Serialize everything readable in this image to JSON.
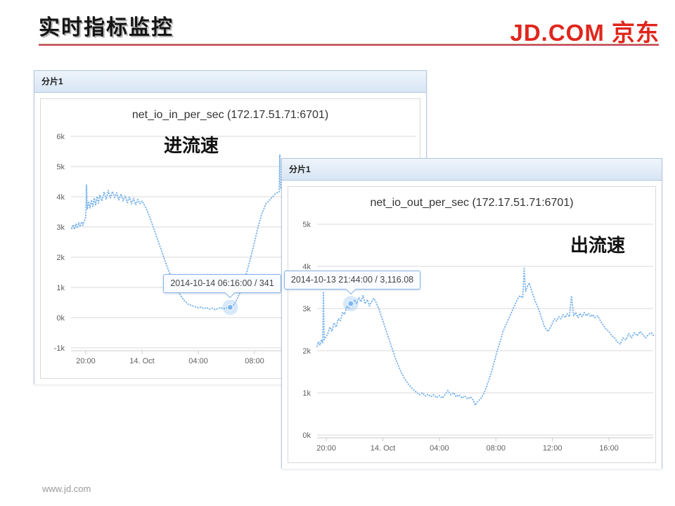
{
  "page": {
    "heading": "实时指标监控",
    "logo_text": "JD.COM 京东",
    "footer": "www.jd.com",
    "brand_red": "#E0261C",
    "underline_red": "#C53A56"
  },
  "panels": [
    {
      "header": "分片1"
    },
    {
      "header": "分片1"
    }
  ],
  "chart_data": [
    {
      "type": "line",
      "title": "net_io_in_per_sec (172.17.51.71:6701)",
      "overlay_label": "进流速",
      "xlabel": "",
      "ylabel": "",
      "grid": true,
      "legend": false,
      "line_style": "dotted",
      "x_unit": "hours since 2014-10-13 00:00",
      "x_domain": [
        18.95,
        43.45
      ],
      "y_domain": [
        -1000,
        6000
      ],
      "y_ticks": [
        {
          "v": -1000,
          "label": "-1k"
        },
        {
          "v": 0,
          "label": "0k"
        },
        {
          "v": 1000,
          "label": "1k"
        },
        {
          "v": 2000,
          "label": "2k"
        },
        {
          "v": 3000,
          "label": "3k"
        },
        {
          "v": 4000,
          "label": "4k"
        },
        {
          "v": 5000,
          "label": "5k"
        },
        {
          "v": 6000,
          "label": "6k"
        }
      ],
      "x_ticks": [
        {
          "h": 20,
          "label": "20:00"
        },
        {
          "h": 24,
          "label": "14. Oct"
        },
        {
          "h": 28,
          "label": "04:00"
        },
        {
          "h": 32,
          "label": "08:00"
        }
      ],
      "highlight": {
        "h": 30.266,
        "v": 341,
        "tooltip": "2014-10-14 06:16:00 / 341"
      },
      "series": [
        {
          "name": "net_io_in_per_sec",
          "color": "#7CB5EC",
          "points": [
            [
              19.0,
              2950
            ],
            [
              19.1,
              3080
            ],
            [
              19.2,
              2920
            ],
            [
              19.3,
              3110
            ],
            [
              19.4,
              2960
            ],
            [
              19.5,
              3150
            ],
            [
              19.6,
              3010
            ],
            [
              19.7,
              3170
            ],
            [
              19.8,
              3050
            ],
            [
              19.9,
              3210
            ],
            [
              20.0,
              3320
            ],
            [
              20.05,
              4400
            ],
            [
              20.1,
              3580
            ],
            [
              20.2,
              3850
            ],
            [
              20.3,
              3620
            ],
            [
              20.4,
              3900
            ],
            [
              20.5,
              3680
            ],
            [
              20.6,
              3960
            ],
            [
              20.7,
              3730
            ],
            [
              20.8,
              4010
            ],
            [
              20.9,
              3790
            ],
            [
              21.0,
              4060
            ],
            [
              21.15,
              3860
            ],
            [
              21.3,
              4160
            ],
            [
              21.45,
              3910
            ],
            [
              21.6,
              4210
            ],
            [
              21.75,
              3960
            ],
            [
              21.9,
              4180
            ],
            [
              22.05,
              3980
            ],
            [
              22.2,
              4130
            ],
            [
              22.35,
              3890
            ],
            [
              22.5,
              4090
            ],
            [
              22.65,
              3860
            ],
            [
              22.8,
              4030
            ],
            [
              22.95,
              3810
            ],
            [
              23.1,
              3990
            ],
            [
              23.25,
              3770
            ],
            [
              23.4,
              3950
            ],
            [
              23.55,
              3730
            ],
            [
              23.7,
              3910
            ],
            [
              23.85,
              3770
            ],
            [
              24.0,
              3860
            ],
            [
              24.3,
              3610
            ],
            [
              24.6,
              3260
            ],
            [
              24.9,
              2860
            ],
            [
              25.2,
              2460
            ],
            [
              25.5,
              2060
            ],
            [
              25.8,
              1660
            ],
            [
              26.1,
              1310
            ],
            [
              26.4,
              1010
            ],
            [
              26.7,
              760
            ],
            [
              27.0,
              570
            ],
            [
              27.3,
              440
            ],
            [
              27.6,
              390
            ],
            [
              27.8,
              355
            ],
            [
              28.0,
              325
            ],
            [
              28.2,
              352
            ],
            [
              28.4,
              300
            ],
            [
              28.6,
              332
            ],
            [
              28.8,
              282
            ],
            [
              29.0,
              312
            ],
            [
              29.2,
              262
            ],
            [
              29.4,
              300
            ],
            [
              29.6,
              332
            ],
            [
              29.8,
              292
            ],
            [
              30.0,
              322
            ],
            [
              30.266,
              341
            ],
            [
              30.5,
              400
            ],
            [
              30.7,
              560
            ],
            [
              31.0,
              860
            ],
            [
              31.3,
              1260
            ],
            [
              31.6,
              1760
            ],
            [
              31.9,
              2310
            ],
            [
              32.2,
              2910
            ],
            [
              32.5,
              3410
            ],
            [
              32.8,
              3760
            ],
            [
              33.1,
              3910
            ],
            [
              33.3,
              4010
            ],
            [
              33.5,
              4110
            ],
            [
              33.75,
              4160
            ],
            [
              33.8,
              5400
            ],
            [
              33.85,
              4300
            ],
            [
              33.95,
              4210
            ]
          ]
        }
      ]
    },
    {
      "type": "line",
      "title": "net_io_out_per_sec (172.17.51.71:6701)",
      "overlay_label": "出流速",
      "xlabel": "",
      "ylabel": "",
      "grid": true,
      "legend": false,
      "line_style": "dotted",
      "x_unit": "hours since 2014-10-13 00:00",
      "x_domain": [
        19.35,
        43.13
      ],
      "y_domain": [
        0,
        5000
      ],
      "y_ticks": [
        {
          "v": 0,
          "label": "0k"
        },
        {
          "v": 1000,
          "label": "1k"
        },
        {
          "v": 2000,
          "label": "2k"
        },
        {
          "v": 3000,
          "label": "3k"
        },
        {
          "v": 4000,
          "label": "4k"
        },
        {
          "v": 5000,
          "label": "5k"
        }
      ],
      "x_ticks": [
        {
          "h": 20,
          "label": "20:00"
        },
        {
          "h": 24,
          "label": "14. Oct"
        },
        {
          "h": 28,
          "label": "04:00"
        },
        {
          "h": 32,
          "label": "08:00"
        },
        {
          "h": 36,
          "label": "12:00"
        },
        {
          "h": 40,
          "label": "16:00"
        }
      ],
      "highlight": {
        "h": 21.733,
        "v": 3116.08,
        "tooltip": "2014-10-13 21:44:00 / 3,116.08"
      },
      "series": [
        {
          "name": "net_io_out_per_sec",
          "color": "#7CB5EC",
          "points": [
            [
              19.35,
              2100
            ],
            [
              19.45,
              2210
            ],
            [
              19.55,
              2130
            ],
            [
              19.65,
              2260
            ],
            [
              19.75,
              2180
            ],
            [
              19.8,
              3400
            ],
            [
              19.85,
              2260
            ],
            [
              19.95,
              2320
            ],
            [
              20.1,
              2400
            ],
            [
              20.25,
              2560
            ],
            [
              20.4,
              2460
            ],
            [
              20.55,
              2660
            ],
            [
              20.7,
              2560
            ],
            [
              20.85,
              2760
            ],
            [
              21.0,
              2710
            ],
            [
              21.15,
              2910
            ],
            [
              21.3,
              2860
            ],
            [
              21.45,
              3060
            ],
            [
              21.6,
              3010
            ],
            [
              21.733,
              3116
            ],
            [
              21.85,
              3060
            ],
            [
              22.0,
              3210
            ],
            [
              22.15,
              3110
            ],
            [
              22.3,
              3260
            ],
            [
              22.45,
              3160
            ],
            [
              22.6,
              3310
            ],
            [
              22.75,
              3110
            ],
            [
              22.9,
              3210
            ],
            [
              23.05,
              3060
            ],
            [
              23.2,
              3160
            ],
            [
              23.35,
              3240
            ],
            [
              23.5,
              3160
            ],
            [
              23.7,
              3010
            ],
            [
              24.0,
              2710
            ],
            [
              24.3,
              2410
            ],
            [
              24.6,
              2110
            ],
            [
              24.9,
              1810
            ],
            [
              25.2,
              1560
            ],
            [
              25.5,
              1360
            ],
            [
              25.8,
              1210
            ],
            [
              26.1,
              1090
            ],
            [
              26.4,
              1010
            ],
            [
              26.6,
              955
            ],
            [
              26.8,
              1005
            ],
            [
              27.0,
              925
            ],
            [
              27.2,
              965
            ],
            [
              27.4,
              905
            ],
            [
              27.6,
              955
            ],
            [
              27.8,
              885
            ],
            [
              28.0,
              935
            ],
            [
              28.2,
              875
            ],
            [
              28.4,
              955
            ],
            [
              28.6,
              1055
            ],
            [
              28.8,
              955
            ],
            [
              29.0,
              1005
            ],
            [
              29.2,
              905
            ],
            [
              29.4,
              955
            ],
            [
              29.6,
              875
            ],
            [
              29.8,
              925
            ],
            [
              30.0,
              855
            ],
            [
              30.2,
              905
            ],
            [
              30.4,
              825
            ],
            [
              30.55,
              705
            ],
            [
              30.7,
              785
            ],
            [
              30.9,
              855
            ],
            [
              31.1,
              955
            ],
            [
              31.3,
              1105
            ],
            [
              31.5,
              1305
            ],
            [
              31.7,
              1505
            ],
            [
              31.9,
              1755
            ],
            [
              32.1,
              2005
            ],
            [
              32.3,
              2205
            ],
            [
              32.5,
              2455
            ],
            [
              32.7,
              2605
            ],
            [
              32.9,
              2755
            ],
            [
              33.1,
              2905
            ],
            [
              33.3,
              3055
            ],
            [
              33.5,
              3205
            ],
            [
              33.7,
              3305
            ],
            [
              33.9,
              3255
            ],
            [
              34.0,
              3950
            ],
            [
              34.1,
              3405
            ],
            [
              34.2,
              3505
            ],
            [
              34.35,
              3605
            ],
            [
              34.5,
              3455
            ],
            [
              34.65,
              3305
            ],
            [
              34.8,
              3155
            ],
            [
              35.0,
              3005
            ],
            [
              35.2,
              2805
            ],
            [
              35.4,
              2605
            ],
            [
              35.55,
              2505
            ],
            [
              35.7,
              2455
            ],
            [
              35.85,
              2555
            ],
            [
              36.0,
              2655
            ],
            [
              36.15,
              2755
            ],
            [
              36.3,
              2705
            ],
            [
              36.45,
              2805
            ],
            [
              36.6,
              2755
            ],
            [
              36.75,
              2855
            ],
            [
              36.9,
              2785
            ],
            [
              37.05,
              2875
            ],
            [
              37.2,
              2805
            ],
            [
              37.35,
              3300
            ],
            [
              37.5,
              2825
            ],
            [
              37.65,
              2905
            ],
            [
              37.8,
              2785
            ],
            [
              37.95,
              2885
            ],
            [
              38.1,
              2805
            ],
            [
              38.25,
              2905
            ],
            [
              38.4,
              2825
            ],
            [
              38.55,
              2885
            ],
            [
              38.7,
              2805
            ],
            [
              38.85,
              2855
            ],
            [
              39.0,
              2785
            ],
            [
              39.2,
              2825
            ],
            [
              39.4,
              2705
            ],
            [
              39.6,
              2605
            ],
            [
              39.8,
              2505
            ],
            [
              40.0,
              2455
            ],
            [
              40.2,
              2355
            ],
            [
              40.4,
              2305
            ],
            [
              40.6,
              2205
            ],
            [
              40.8,
              2155
            ],
            [
              41.0,
              2305
            ],
            [
              41.2,
              2255
            ],
            [
              41.4,
              2405
            ],
            [
              41.6,
              2305
            ],
            [
              41.8,
              2425
            ],
            [
              42.0,
              2355
            ],
            [
              42.2,
              2455
            ],
            [
              42.4,
              2385
            ],
            [
              42.6,
              2305
            ],
            [
              42.8,
              2385
            ],
            [
              43.0,
              2425
            ],
            [
              43.15,
              2360
            ]
          ]
        }
      ]
    }
  ]
}
